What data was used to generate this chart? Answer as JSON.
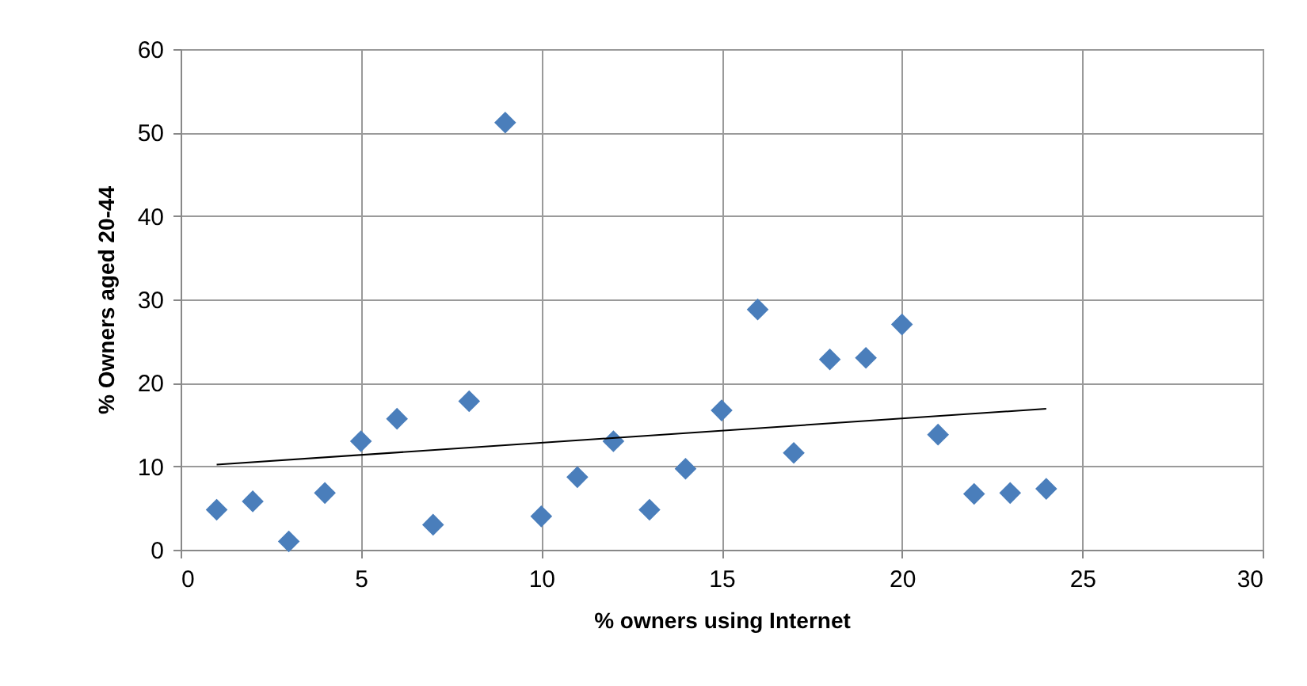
{
  "chart_data": {
    "type": "scatter",
    "xlabel": "% owners using Internet",
    "ylabel": "% Owners aged 20-44",
    "series": [
      {
        "color": "#4a7ebb",
        "marker": "diamond",
        "x": [
          1,
          2,
          3,
          4,
          5,
          6,
          7,
          8,
          9,
          10,
          11,
          12,
          13,
          14,
          15,
          16,
          17,
          18,
          19,
          20,
          21,
          22,
          23,
          24
        ],
        "values": [
          4.8,
          5.8,
          1,
          6.8,
          13,
          15.7,
          3,
          17.8,
          51.2,
          4,
          8.7,
          13,
          4.8,
          9.7,
          16.7,
          28.8,
          11.6,
          22.8,
          23,
          27,
          13.8,
          6.7,
          6.8,
          7.3
        ]
      },
      {
        "type": "line",
        "color": "#000000",
        "marker": "none",
        "x": [
          1,
          24
        ],
        "values": [
          10.2,
          16.9
        ]
      }
    ],
    "xlim": [
      0,
      30
    ],
    "xticks": [
      0,
      5,
      10,
      15,
      20,
      25,
      30
    ],
    "ylim": [
      0,
      60
    ],
    "yticks": [
      0,
      10,
      20,
      30,
      40,
      50,
      60
    ],
    "grid": true
  }
}
